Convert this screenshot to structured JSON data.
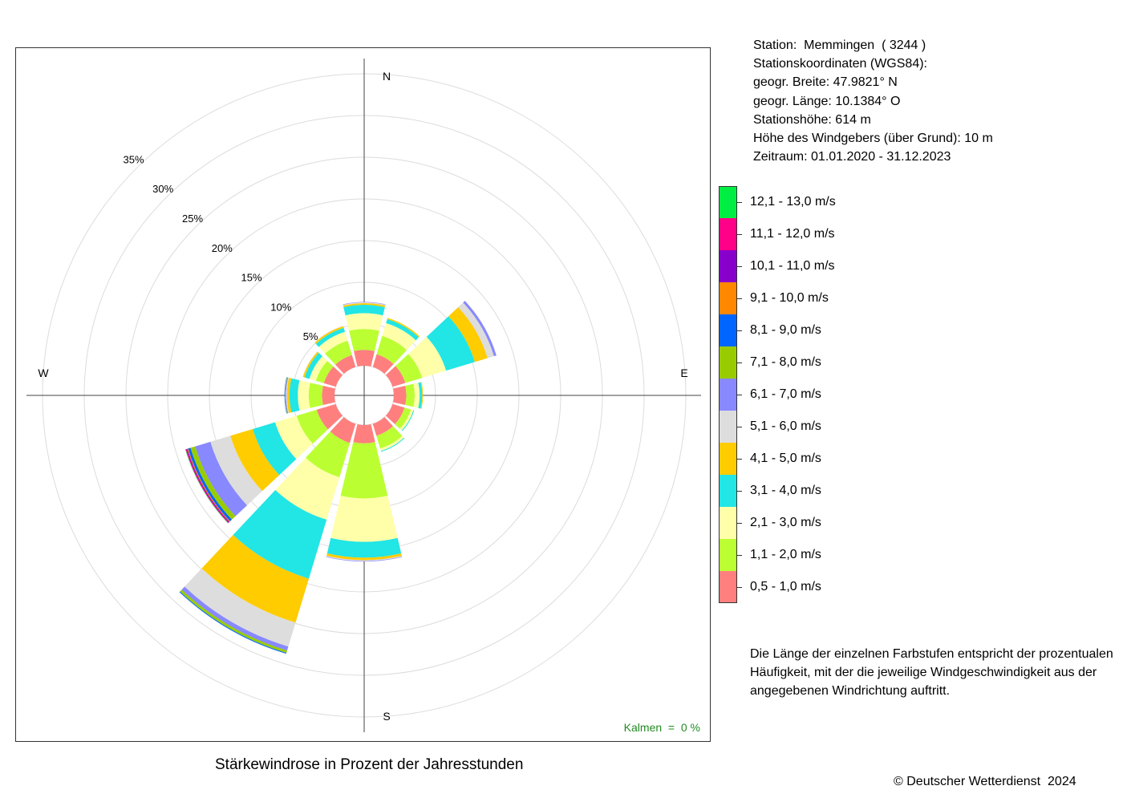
{
  "chart_title": "Stärkewindrose in Prozent der Jahresstunden",
  "calm_label": "Kalmen  =  0 %",
  "copyright": "© Deutscher Wetterdienst  2024",
  "station_info": {
    "station": "Station:  Memmingen  ( 3244 )",
    "coords_header": "Stationskoordinaten (WGS84):",
    "latitude": "geogr. Breite: 47.9821° N",
    "longitude": "geogr. Länge: 10.1384° O",
    "elevation": "Stationshöhe: 614 m",
    "sensor_height": "Höhe des Windgebers (über Grund): 10 m",
    "period": "Zeitraum: 01.01.2020 - 31.12.2023"
  },
  "note": "Die Länge der einzelnen Farbstufen entspricht der prozentualen Häufigkeit, mit der die jeweilige Windgeschwindigkeit aus der angegebenen Windrichtung auftritt.",
  "legend": [
    {
      "label": "12,1 - 13,0 m/s",
      "color": "#00ee44"
    },
    {
      "label": "11,1 - 12,0 m/s",
      "color": "#ff0088"
    },
    {
      "label": "10,1 - 11,0 m/s",
      "color": "#8800cc"
    },
    {
      "label": "9,1 - 10,0 m/s",
      "color": "#ff8800"
    },
    {
      "label": "8,1 - 9,0 m/s",
      "color": "#0066ff"
    },
    {
      "label": "7,1 - 8,0 m/s",
      "color": "#99cc00"
    },
    {
      "label": "6,1 - 7,0 m/s",
      "color": "#8888ff"
    },
    {
      "label": "5,1 - 6,0 m/s",
      "color": "#dddddd"
    },
    {
      "label": "4,1 - 5,0 m/s",
      "color": "#ffcc00"
    },
    {
      "label": "3,1 - 4,0 m/s",
      "color": "#22e5e5"
    },
    {
      "label": "2,1 - 3,0 m/s",
      "color": "#ffffaa"
    },
    {
      "label": "1,1 - 2,0 m/s",
      "color": "#bbff33"
    },
    {
      "label": "0,5 - 1,0 m/s",
      "color": "#ff7f7f"
    }
  ],
  "chart_data": {
    "type": "windrose",
    "title": "Stärkewindrose in Prozent der Jahresstunden",
    "radial_unit": "%",
    "radial_ticks": [
      5,
      10,
      15,
      20,
      25,
      30,
      35
    ],
    "radial_tick_labels": [
      "5%",
      "10%",
      "15%",
      "20%",
      "25%",
      "30%",
      "35%"
    ],
    "radial_range": [
      0,
      35
    ],
    "compass_labels": {
      "N": "N",
      "E": "E",
      "S": "S",
      "W": "W"
    },
    "calm_percent": 0,
    "speed_classes": [
      "0,5 - 1,0 m/s",
      "1,1 - 2,0 m/s",
      "2,1 - 3,0 m/s",
      "3,1 - 4,0 m/s",
      "4,1 - 5,0 m/s",
      "5,1 - 6,0 m/s",
      "6,1 - 7,0 m/s",
      "7,1 - 8,0 m/s",
      "8,1 - 9,0 m/s",
      "9,1 - 10,0 m/s",
      "10,1 - 11,0 m/s",
      "11,1 - 12,0 m/s",
      "12,1 - 13,0 m/s"
    ],
    "class_colors": [
      "#ff7f7f",
      "#bbff33",
      "#ffffaa",
      "#22e5e5",
      "#ffcc00",
      "#dddddd",
      "#8888ff",
      "#99cc00",
      "#0066ff",
      "#ff8800",
      "#8800cc",
      "#ff0088",
      "#00ee44"
    ],
    "sectors": [
      {
        "direction": 0,
        "values": [
          1.9,
          2.5,
          1.9,
          1.0,
          0.2,
          0.1,
          0.05,
          0,
          0,
          0,
          0,
          0,
          0
        ]
      },
      {
        "direction": 30,
        "values": [
          1.6,
          2.3,
          1.6,
          0.5,
          0.15,
          0,
          0,
          0,
          0,
          0,
          0,
          0,
          0
        ]
      },
      {
        "direction": 60,
        "values": [
          1.6,
          2.1,
          3.0,
          3.6,
          1.6,
          0.8,
          0.3,
          0,
          0,
          0,
          0,
          0,
          0
        ]
      },
      {
        "direction": 90,
        "values": [
          1.5,
          1.0,
          0.6,
          0.3,
          0.1,
          0,
          0,
          0,
          0,
          0,
          0,
          0,
          0
        ]
      },
      {
        "direction": 120,
        "values": [
          1.5,
          0.8,
          0.3,
          0.1,
          0,
          0,
          0,
          0,
          0,
          0,
          0,
          0,
          0
        ]
      },
      {
        "direction": 150,
        "values": [
          1.5,
          1.6,
          0.3,
          0.1,
          0,
          0,
          0,
          0,
          0,
          0,
          0,
          0,
          0
        ]
      },
      {
        "direction": 180,
        "values": [
          2.2,
          6.6,
          5.2,
          1.9,
          0.3,
          0.1,
          0.05,
          0,
          0,
          0,
          0,
          0,
          0
        ]
      },
      {
        "direction": 210,
        "values": [
          2.4,
          4.3,
          5.3,
          7.4,
          5.5,
          3.0,
          0.5,
          0.3,
          0.1,
          0,
          0,
          0,
          0
        ]
      },
      {
        "direction": 240,
        "values": [
          2.4,
          2.5,
          2.7,
          2.8,
          2.8,
          2.5,
          1.9,
          0.6,
          0.3,
          0.1,
          0.1,
          0.1,
          0.05
        ]
      },
      {
        "direction": 270,
        "values": [
          1.5,
          1.6,
          1.3,
          1.0,
          0.3,
          0.1,
          0.1,
          0.05,
          0.05,
          0,
          0,
          0,
          0
        ]
      },
      {
        "direction": 300,
        "values": [
          1.5,
          1.0,
          0.8,
          0.6,
          0.2,
          0.05,
          0,
          0,
          0,
          0,
          0,
          0,
          0
        ]
      },
      {
        "direction": 330,
        "values": [
          1.5,
          1.8,
          1.1,
          0.5,
          0.2,
          0.05,
          0,
          0,
          0,
          0,
          0,
          0,
          0
        ]
      }
    ]
  }
}
